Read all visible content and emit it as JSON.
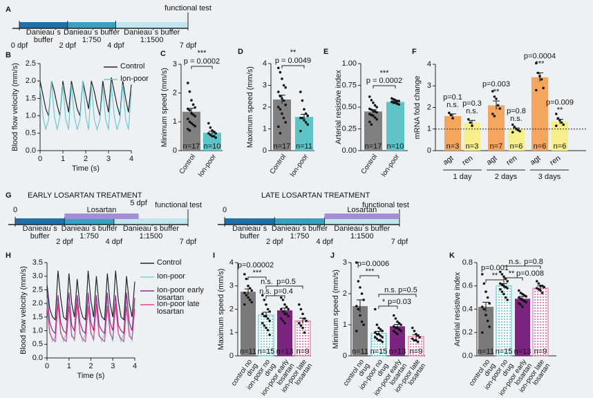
{
  "timelines": [
    {
      "panel": "A",
      "end_label": "functional test",
      "ticks": [
        {
          "value": 0,
          "label": "0 dpf"
        },
        {
          "value": 2,
          "label": "2 dpf"
        },
        {
          "value": 4,
          "label": "4 dpf"
        },
        {
          "value": 7,
          "label": "7 dpf"
        }
      ],
      "segments": [
        [
          "Danieau´s",
          "buffer"
        ],
        [
          "Danieau´s buffer",
          "1:750"
        ],
        [
          "Danieau´s buffer",
          "1:1500"
        ]
      ],
      "segment_colors": [
        "#1f6fa8",
        "#3aa0c0",
        "#bfe6ee"
      ]
    },
    {
      "panel": "G",
      "title": "EARLY LOSARTAN TREATMENT",
      "end_label": "functional test",
      "ticks": [
        {
          "value": 0,
          "label": "0"
        },
        {
          "value": 2,
          "label": "2 dpf"
        },
        {
          "value": 4,
          "label": "4 dpf"
        },
        {
          "value": 7,
          "label": "7 dpf"
        }
      ],
      "segments": [
        [
          "Danieau´s",
          "buffer"
        ],
        [
          "Danieau´s buffer",
          "1:750"
        ],
        [
          "Danieau´s buffer",
          "1:1500"
        ]
      ],
      "segment_colors": [
        "#1f6fa8",
        "#3aa0c0",
        "#bfe6ee"
      ],
      "treatment": {
        "label": "Losartan",
        "start": 2,
        "end": 5,
        "end_label": "5 dpf",
        "color": "#a48cd6"
      }
    },
    {
      "title": "LATE LOSARTAN TREATMENT",
      "end_label": "functional test",
      "ticks": [
        {
          "value": 0,
          "label": "0"
        },
        {
          "value": 2,
          "label": "2 dpf"
        },
        {
          "value": 4,
          "label": "4 dpf"
        },
        {
          "value": 7,
          "label": "7 dpf"
        }
      ],
      "segments": [
        [
          "Danieau´s",
          "buffer"
        ],
        [
          "Danieau´s buffer",
          "1:750"
        ],
        [
          "Danieau´s buffer",
          "1:1500"
        ]
      ],
      "segment_colors": [
        "#1f6fa8",
        "#3aa0c0",
        "#bfe6ee"
      ],
      "treatment": {
        "label": "Losartan",
        "start": 4,
        "end": 7,
        "color": "#a48cd6"
      }
    }
  ],
  "chart_data": [
    {
      "panel": "B",
      "type": "line",
      "y_label": "Blood flow velocity (mm/s)",
      "x_label": "Time (s)",
      "x": [
        0,
        0.125,
        0.25,
        0.375,
        0.5,
        0.625,
        0.75,
        0.875,
        1,
        1.125,
        1.25,
        1.375,
        1.5,
        1.625,
        1.75,
        1.875,
        2,
        2.125,
        2.25,
        2.375,
        2.5,
        2.625,
        2.75,
        2.875,
        3,
        3.125,
        3.25,
        3.375,
        3.5,
        3.625,
        3.75,
        3.875,
        4
      ],
      "xlim": [
        0,
        4
      ],
      "xticks": [
        0,
        1,
        2,
        3,
        4
      ],
      "ylim": [
        0,
        2.5
      ],
      "yticks": [
        {
          "value": 0,
          "label": "0.0"
        },
        0.5,
        {
          "value": 1,
          "label": "1.0"
        },
        1.5,
        {
          "value": 2,
          "label": "2.0"
        },
        2.5
      ],
      "series": [
        {
          "name": "Control",
          "color": "#222222",
          "values": [
            2.0,
            1.6,
            1.2,
            1.0,
            2.0,
            1.7,
            1.3,
            1.0,
            2.0,
            1.5,
            1.1,
            2.0,
            1.6,
            1.2,
            1.0,
            2.0,
            1.6,
            1.2,
            2.0,
            1.7,
            1.3,
            1.0,
            2.0,
            1.5,
            1.1,
            2.1,
            1.7,
            1.3,
            1.0,
            2.0,
            1.5,
            1.1,
            1.9
          ]
        },
        {
          "name": "Ion-poor",
          "color": "#6cc7d2",
          "values": [
            1.8,
            1.0,
            0.6,
            0.9,
            2.0,
            1.0,
            0.6,
            1.0,
            1.9,
            0.9,
            0.6,
            1.9,
            1.0,
            0.6,
            0.9,
            2.0,
            1.0,
            0.6,
            1.9,
            0.9,
            0.6,
            0.9,
            1.8,
            0.9,
            0.6,
            1.9,
            1.0,
            0.6,
            0.9,
            1.9,
            0.9,
            0.6,
            1.7
          ]
        }
      ]
    },
    {
      "panel": "C",
      "type": "bar",
      "y_label": "Minimum speed (mm/s)",
      "categories": [
        "Control",
        "Ion-poor"
      ],
      "values": [
        1.35,
        0.62
      ],
      "errors": [
        0.12,
        0.05
      ],
      "colors": [
        "#808080",
        "#5ec4c8"
      ],
      "n_labels": [
        "n=17",
        "n=10"
      ],
      "points": [
        [
          2.35,
          2.05,
          1.75,
          1.6,
          1.5,
          1.45,
          1.4,
          1.3,
          1.25,
          1.2,
          1.1,
          1.0,
          0.95,
          0.9,
          0.85,
          0.75,
          0.7
        ],
        [
          0.95,
          0.8,
          0.7,
          0.65,
          0.6,
          0.6,
          0.55,
          0.5,
          0.5,
          0.45
        ]
      ],
      "ylim": [
        0,
        3
      ],
      "yticks": [
        0,
        1,
        2,
        3
      ],
      "annotations": [
        "***",
        "p = 0.0002"
      ]
    },
    {
      "panel": "D",
      "type": "bar",
      "y_label": "Maximum speed (mm/s)",
      "categories": [
        "Control",
        "Ion-poor"
      ],
      "values": [
        2.35,
        1.55
      ],
      "errors": [
        0.2,
        0.12
      ],
      "colors": [
        "#808080",
        "#5ec4c8"
      ],
      "n_labels": [
        "n=17",
        "n=11"
      ],
      "points": [
        [
          3.8,
          3.6,
          3.3,
          3.0,
          2.9,
          2.7,
          2.5,
          2.4,
          2.3,
          2.1,
          2.0,
          1.9,
          1.7,
          1.5,
          1.3,
          1.1,
          0.8
        ],
        [
          2.7,
          2.3,
          1.9,
          1.7,
          1.6,
          1.5,
          1.5,
          1.4,
          1.3,
          1.2,
          0.9
        ]
      ],
      "ylim": [
        0,
        4
      ],
      "yticks": [
        0,
        1,
        2,
        3,
        4
      ],
      "annotations": [
        "**",
        "p = 0.0049"
      ]
    },
    {
      "panel": "E",
      "type": "bar",
      "y_label": "Arterial resistive index",
      "categories": [
        "Control",
        "Ion-poor"
      ],
      "values": [
        0.45,
        0.56
      ],
      "errors": [
        0.02,
        0.01
      ],
      "colors": [
        "#808080",
        "#5ec4c8"
      ],
      "n_labels": [
        "n=17",
        "n=10"
      ],
      "points": [
        [
          0.62,
          0.58,
          0.55,
          0.52,
          0.5,
          0.48,
          0.47,
          0.46,
          0.45,
          0.44,
          0.42,
          0.41,
          0.4,
          0.38,
          0.36,
          0.33,
          0.3
        ],
        [
          0.6,
          0.59,
          0.58,
          0.57,
          0.57,
          0.56,
          0.55,
          0.55,
          0.54,
          0.53
        ]
      ],
      "ylim": [
        0,
        1
      ],
      "yticks": [
        {
          "value": 0,
          "label": "0.00"
        },
        0.25,
        {
          "value": 0.5,
          "label": "0.50"
        },
        0.75,
        {
          "value": 1,
          "label": "1.00"
        }
      ],
      "annotations": [
        "***",
        "p = 0.0002"
      ]
    },
    {
      "panel": "F",
      "type": "bar",
      "y_label": "mRNA fold change",
      "categories": [
        "agt",
        "ren",
        "agt",
        "ren",
        "agt",
        "ren"
      ],
      "groups": [
        "1 day",
        "2 days",
        "3 days"
      ],
      "values": [
        1.6,
        1.3,
        2.1,
        1.0,
        3.4,
        1.35
      ],
      "errors": [
        0.1,
        0.1,
        0.2,
        0.05,
        0.2,
        0.1
      ],
      "colors": [
        "#f4a65e",
        "#f6ef8a",
        "#f4a65e",
        "#f6ef8a",
        "#f4a65e",
        "#f6ef8a"
      ],
      "n_labels": [
        "n=3",
        "n=3",
        "n=7",
        "n=6",
        "n=6",
        "n=6"
      ],
      "points": [
        [
          1.75,
          1.65,
          1.5
        ],
        [
          1.45,
          1.3,
          1.15
        ],
        [
          2.75,
          2.5,
          2.4,
          2.1,
          1.95,
          1.7,
          1.6
        ],
        [
          1.2,
          1.1,
          1.0,
          0.95,
          0.9,
          0.85
        ],
        [
          4.05,
          3.6,
          3.45,
          3.3,
          2.9,
          2.8
        ],
        [
          1.7,
          1.5,
          1.4,
          1.3,
          1.2,
          1.15
        ]
      ],
      "bar_annotations": [
        [
          "p=0.1",
          "n.s."
        ],
        [
          "p=0.3",
          "n.s."
        ],
        [
          "p=0.003",
          "**"
        ],
        [
          "p=0.8",
          "n.s."
        ],
        [
          "p=0.0004",
          "***"
        ],
        [
          "p=0.009",
          "**"
        ]
      ],
      "reference_line": 1,
      "ylim": [
        0,
        4
      ],
      "yticks": [
        0,
        1,
        2,
        3,
        4
      ]
    },
    {
      "panel": "H",
      "type": "line",
      "y_label": "Blood flow velocity (mm/s)",
      "x_label": "Time (s)",
      "x": [
        0,
        0.125,
        0.25,
        0.375,
        0.5,
        0.625,
        0.75,
        0.875,
        1,
        1.125,
        1.25,
        1.375,
        1.5,
        1.625,
        1.75,
        1.875,
        2,
        2.125,
        2.25,
        2.375,
        2.5,
        2.625,
        2.75,
        2.875,
        3,
        3.125,
        3.25,
        3.375,
        3.5,
        3.625,
        3.75,
        3.875,
        4
      ],
      "xlim": [
        0,
        4
      ],
      "xticks": [
        0,
        1,
        2,
        3,
        4
      ],
      "ylim": [
        0,
        3.5
      ],
      "yticks": [
        {
          "value": 0,
          "label": "0.0"
        },
        0.5,
        {
          "value": 1,
          "label": "1.0"
        },
        1.5,
        {
          "value": 2,
          "label": "2.0"
        },
        2.5,
        {
          "value": 3,
          "label": "3.0"
        },
        3.5
      ],
      "series": [
        {
          "name": "Control",
          "color": "#222222",
          "values": [
            2.7,
            1.8,
            1.5,
            1.4,
            3.2,
            2.2,
            1.5,
            1.4,
            3.1,
            2.0,
            1.5,
            2.9,
            1.9,
            1.5,
            1.4,
            3.2,
            2.1,
            1.5,
            3.0,
            1.9,
            1.5,
            1.4,
            3.1,
            2.0,
            1.5,
            3.2,
            2.1,
            1.5,
            1.4,
            3.0,
            2.0,
            1.5,
            2.8
          ]
        },
        {
          "name": "Ion-poor",
          "color": "#7fcfd8",
          "values": [
            2.2,
            1.0,
            0.6,
            0.8,
            2.1,
            1.0,
            0.6,
            0.9,
            2.0,
            0.9,
            0.6,
            2.1,
            1.0,
            0.6,
            0.9,
            2.2,
            1.0,
            0.6,
            2.0,
            0.9,
            0.6,
            0.9,
            2.1,
            1.0,
            0.6,
            2.0,
            0.9,
            0.6,
            0.9,
            2.1,
            1.0,
            0.6,
            2.0
          ]
        },
        {
          "name": "Ion-poor early losartan",
          "color": "#8b2a8e",
          "values": [
            2.4,
            1.3,
            1.0,
            0.9,
            2.3,
            1.3,
            1.0,
            0.9,
            2.4,
            1.2,
            1.0,
            2.3,
            1.3,
            1.0,
            0.9,
            2.4,
            1.3,
            1.0,
            2.3,
            1.2,
            1.0,
            0.9,
            2.4,
            1.3,
            1.0,
            2.3,
            1.2,
            1.0,
            0.9,
            2.4,
            1.3,
            1.0,
            2.2
          ]
        },
        {
          "name": "Ion-poor late losartan",
          "color": "#e0408a",
          "values": [
            1.9,
            0.9,
            0.7,
            0.6,
            2.0,
            0.9,
            0.7,
            0.6,
            1.9,
            0.8,
            0.7,
            2.0,
            0.9,
            0.7,
            0.6,
            1.9,
            0.9,
            0.7,
            2.0,
            0.8,
            0.7,
            0.6,
            1.9,
            0.9,
            0.7,
            2.0,
            0.9,
            0.7,
            0.6,
            1.9,
            0.8,
            0.7,
            1.8
          ]
        }
      ]
    },
    {
      "panel": "I",
      "type": "bar",
      "y_label": "Maximum speed (mm/s)",
      "categories": [
        "control no drug",
        "ion-poor no drug",
        "ion-poor early losartan",
        "ion-poor late losartan"
      ],
      "values": [
        2.75,
        1.75,
        1.95,
        1.5
      ],
      "errors": [
        0.12,
        0.12,
        0.1,
        0.12
      ],
      "colors": [
        "#7a7a7a",
        "#5ec4c8",
        "#7b2580",
        "#e05a9a"
      ],
      "hatched": [
        false,
        true,
        false,
        true
      ],
      "n_labels": [
        "n=11",
        "n=15",
        "n=13",
        "n=9"
      ],
      "points": [
        [
          3.5,
          3.3,
          3.0,
          2.9,
          2.8,
          2.7,
          2.6,
          2.5,
          2.4,
          2.3,
          2.2
        ],
        [
          2.6,
          2.4,
          2.2,
          2.0,
          1.9,
          1.8,
          1.7,
          1.7,
          1.6,
          1.5,
          1.4,
          1.3,
          1.2,
          1.1,
          0.9
        ],
        [
          2.5,
          2.4,
          2.2,
          2.1,
          2.0,
          2.0,
          1.9,
          1.8,
          1.8,
          1.7,
          1.6,
          1.5,
          1.4
        ],
        [
          2.2,
          2.0,
          1.8,
          1.6,
          1.5,
          1.4,
          1.3,
          1.2,
          1.0
        ]
      ],
      "ylim": [
        0,
        4
      ],
      "yticks": [
        0,
        1,
        2,
        3,
        4
      ],
      "annotations": [
        "p=0.00002",
        "***",
        "n.s.",
        "p=0.5",
        "n.s.",
        "p=0.4"
      ]
    },
    {
      "panel": "J",
      "type": "bar",
      "y_label": "Minimum speed (mm/s)",
      "categories": [
        "control no drug",
        "ion-poor no drug",
        "ion-poor early losartan",
        "ion-poor late losartan"
      ],
      "values": [
        1.6,
        0.72,
        0.95,
        0.62
      ],
      "errors": [
        0.2,
        0.07,
        0.06,
        0.06
      ],
      "colors": [
        "#7a7a7a",
        "#5ec4c8",
        "#7b2580",
        "#e05a9a"
      ],
      "hatched": [
        false,
        true,
        false,
        true
      ],
      "n_labels": [
        "n=11",
        "n=15",
        "n=13",
        "n=9"
      ],
      "points": [
        [
          3.0,
          2.4,
          2.2,
          2.0,
          1.8,
          1.6,
          1.5,
          1.3,
          1.1,
          1.0,
          0.8
        ],
        [
          1.5,
          1.0,
          0.9,
          0.85,
          0.8,
          0.75,
          0.7,
          0.7,
          0.65,
          0.6,
          0.6,
          0.55,
          0.5,
          0.5,
          0.45
        ],
        [
          1.3,
          1.2,
          1.1,
          1.05,
          1.0,
          0.95,
          0.9,
          0.9,
          0.85,
          0.8,
          0.8,
          0.75,
          0.7
        ],
        [
          0.9,
          0.8,
          0.7,
          0.65,
          0.6,
          0.55,
          0.5,
          0.5,
          0.45
        ]
      ],
      "ylim": [
        0,
        3
      ],
      "yticks": [
        0,
        1,
        2,
        3
      ],
      "annotations": [
        "p=0.0006",
        "***",
        "n.s.",
        "p=0.5",
        "*",
        "p=0.03"
      ]
    },
    {
      "panel": "K",
      "type": "bar",
      "y_label": "Arterial resistive index",
      "categories": [
        "control no drug",
        "ion-poor no drug",
        "ion-poor early losartan",
        "ion-poor late losartan"
      ],
      "values": [
        0.42,
        0.6,
        0.49,
        0.58
      ],
      "errors": [
        0.04,
        0.02,
        0.02,
        0.02
      ],
      "colors": [
        "#7a7a7a",
        "#5ec4c8",
        "#7b2580",
        "#e05a9a"
      ],
      "hatched": [
        false,
        true,
        false,
        true
      ],
      "n_labels": [
        "n=11",
        "n=15",
        "n=13",
        "n=9"
      ],
      "points": [
        [
          0.7,
          0.62,
          0.55,
          0.5,
          0.45,
          0.42,
          0.4,
          0.35,
          0.3,
          0.25,
          0.2
        ],
        [
          0.72,
          0.7,
          0.68,
          0.66,
          0.64,
          0.62,
          0.61,
          0.6,
          0.59,
          0.58,
          0.57,
          0.55,
          0.53,
          0.5,
          0.48
        ],
        [
          0.56,
          0.54,
          0.53,
          0.52,
          0.51,
          0.5,
          0.49,
          0.48,
          0.47,
          0.46,
          0.45,
          0.44,
          0.42
        ],
        [
          0.64,
          0.62,
          0.6,
          0.6,
          0.59,
          0.58,
          0.57,
          0.56,
          0.54
        ]
      ],
      "ylim": [
        0,
        0.8
      ],
      "yticks": [
        {
          "value": 0,
          "label": "0.0"
        },
        0.2,
        0.4,
        0.6,
        0.8
      ],
      "annotations": [
        "p=0.001",
        "**",
        "n.s.",
        "p=0.8",
        "**",
        "p=0.008"
      ]
    }
  ]
}
